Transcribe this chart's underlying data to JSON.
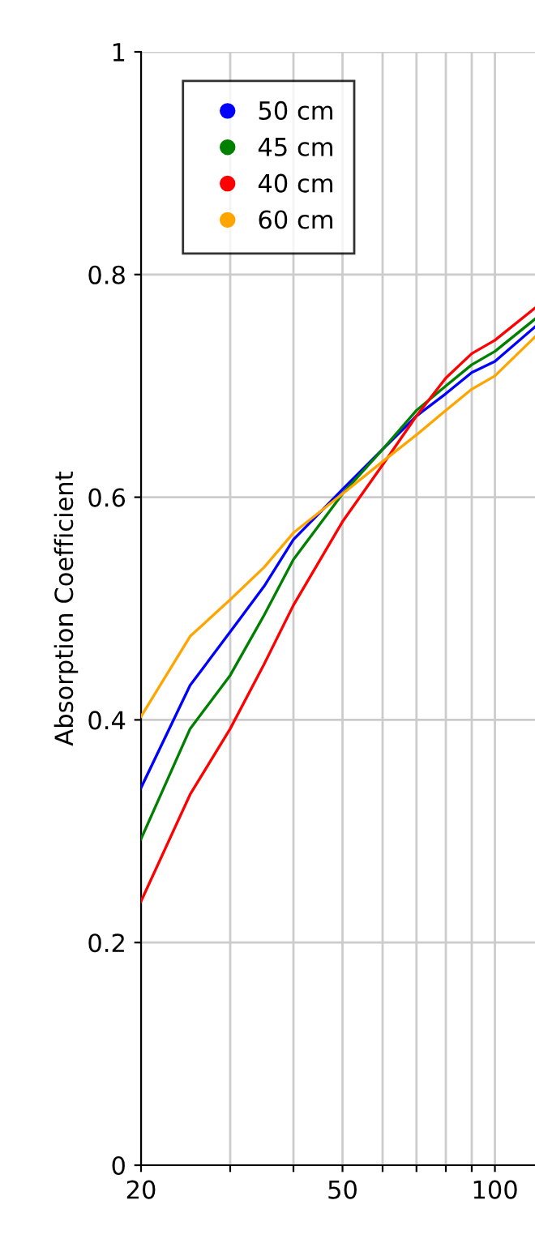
{
  "chart_data": {
    "type": "line",
    "ylabel": "Absorption Coefficient",
    "log": "x",
    "xlim": [
      20,
      120
    ],
    "ylim": [
      0,
      1
    ],
    "xticks": [
      20,
      {
        "value": 30,
        "label": null
      },
      {
        "value": 40,
        "label": null
      },
      50,
      {
        "value": 60,
        "label": null
      },
      {
        "value": 70,
        "label": null
      },
      {
        "value": 80,
        "label": null
      },
      {
        "value": 90,
        "label": null
      },
      100
    ],
    "yticks": [
      0,
      0.2,
      0.4,
      0.6,
      0.8,
      1
    ],
    "grid": true,
    "legend": "top left",
    "marker": "none",
    "line_style": "solid",
    "x": [
      20,
      25,
      30,
      35,
      40,
      50,
      60,
      70,
      80,
      90,
      100,
      120
    ],
    "series": [
      {
        "name": "50 cm",
        "color": "#0000ff",
        "values": [
          0.339,
          0.431,
          0.479,
          0.52,
          0.562,
          0.607,
          0.643,
          0.673,
          0.693,
          0.712,
          0.722,
          0.753
        ]
      },
      {
        "name": "45 cm",
        "color": "#008000",
        "values": [
          0.293,
          0.392,
          0.44,
          0.494,
          0.544,
          0.603,
          0.643,
          0.678,
          0.7,
          0.719,
          0.731,
          0.76
        ]
      },
      {
        "name": "40 cm",
        "color": "#ff0000",
        "values": [
          0.237,
          0.333,
          0.392,
          0.45,
          0.503,
          0.578,
          0.629,
          0.673,
          0.707,
          0.729,
          0.741,
          0.77
        ]
      },
      {
        "name": "60 cm",
        "color": "#ffa500",
        "values": [
          0.403,
          0.475,
          0.508,
          0.537,
          0.568,
          0.603,
          0.632,
          0.656,
          0.678,
          0.697,
          0.709,
          0.744
        ]
      }
    ]
  }
}
